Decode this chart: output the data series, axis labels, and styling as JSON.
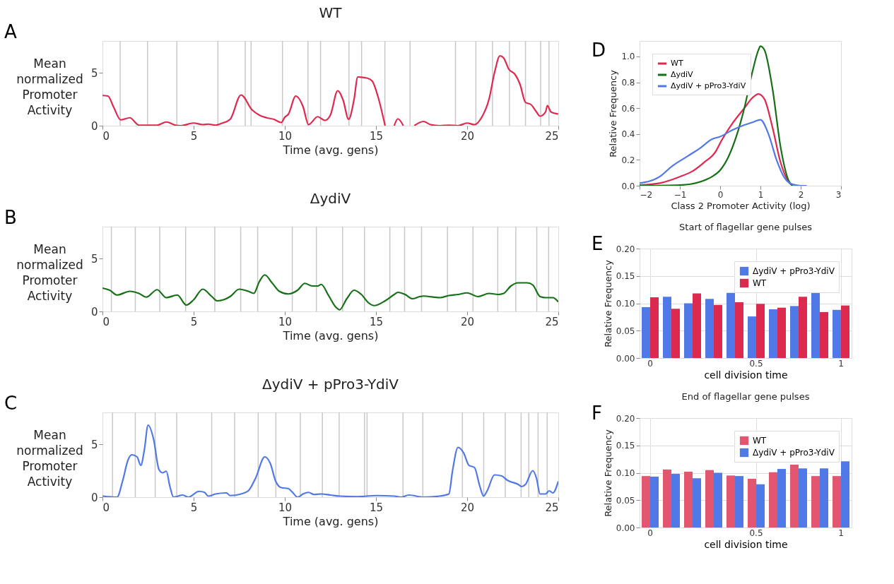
{
  "chart_data": [
    {
      "type": "line",
      "title": "WT",
      "xlabel": "Time (avg. gens)",
      "ylabel": "Mean normalized Promoter Activity",
      "annotations": [
        "A"
      ],
      "xlim": [
        0,
        25
      ],
      "xticks": [
        0,
        5,
        10,
        15,
        20,
        25
      ],
      "ylim": [
        0,
        8
      ],
      "yticks": [
        0,
        5
      ],
      "grid": false,
      "series": [
        {
          "color": "#e0284f",
          "x": [
            0,
            0.3,
            0.6,
            1.0,
            1.5,
            2.0,
            2.5,
            3.0,
            3.5,
            4.0,
            4.3,
            5.0,
            5.5,
            5.8,
            6.2,
            6.5,
            7.0,
            7.6,
            8.2,
            8.6,
            9.0,
            9.4,
            9.8,
            10.0,
            10.2,
            10.6,
            11.0,
            11.3,
            11.8,
            12.2,
            12.5,
            12.9,
            13.2,
            13.5,
            13.8,
            14.0,
            14.5,
            14.8,
            15.1,
            15.5,
            15.75,
            16.0,
            16.2,
            16.5,
            16.8,
            17.1,
            17.6,
            18.0,
            18.5,
            19.0,
            19.5,
            20.0,
            20.4,
            20.8,
            21.2,
            21.5,
            21.8,
            22.0,
            22.3,
            22.6,
            22.9,
            23.2,
            23.5,
            23.8,
            24.0,
            24.3,
            24.4,
            24.6,
            25.0
          ],
          "values": [
            2.85,
            2.8,
            1.8,
            0.55,
            0.75,
            0.05,
            0.05,
            0.05,
            0.35,
            0.05,
            0.0,
            0.25,
            0.1,
            0.15,
            0.05,
            0.2,
            0.6,
            2.9,
            1.5,
            1.0,
            0.75,
            0.6,
            0.3,
            0.8,
            1.1,
            2.8,
            1.8,
            0.1,
            0.85,
            0.5,
            1.0,
            3.3,
            2.4,
            0.6,
            2.5,
            4.6,
            4.5,
            4.2,
            2.8,
            0.0,
            null,
            0.0,
            0.65,
            0.0,
            null,
            0.0,
            0.4,
            0.1,
            0.0,
            0.05,
            0.0,
            0.25,
            0.1,
            0.8,
            2.5,
            5.0,
            6.6,
            6.4,
            5.3,
            4.9,
            3.9,
            2.2,
            2.0,
            1.3,
            0.9,
            1.3,
            1.9,
            1.3,
            1.1
          ]
        }
      ],
      "ref_lines": [
        {
          "axis": "x",
          "value": 0.97,
          "color": "#c8c8c8"
        },
        {
          "axis": "x",
          "value": 2.47,
          "color": "#c8c8c8"
        },
        {
          "axis": "x",
          "value": 4.08,
          "color": "#c8c8c8"
        },
        {
          "axis": "x",
          "value": 6.33,
          "color": "#c8c8c8"
        },
        {
          "axis": "x",
          "value": 7.83,
          "color": "#c8c8c8"
        },
        {
          "axis": "x",
          "value": 8.15,
          "color": "#c8c8c8"
        },
        {
          "axis": "x",
          "value": 9.87,
          "color": "#c8c8c8"
        },
        {
          "axis": "x",
          "value": 11.27,
          "color": "#c8c8c8"
        },
        {
          "axis": "x",
          "value": 11.96,
          "color": "#c8c8c8"
        },
        {
          "axis": "x",
          "value": 13.52,
          "color": "#c8c8c8"
        },
        {
          "axis": "x",
          "value": 14.21,
          "color": "#c8c8c8"
        },
        {
          "axis": "x",
          "value": 15.49,
          "color": "#c8c8c8"
        },
        {
          "axis": "x",
          "value": 16.87,
          "color": "#c8c8c8"
        },
        {
          "axis": "x",
          "value": 19.36,
          "color": "#c8c8c8"
        },
        {
          "axis": "x",
          "value": 20.48,
          "color": "#c8c8c8"
        },
        {
          "axis": "x",
          "value": 21.39,
          "color": "#c8c8c8"
        },
        {
          "axis": "x",
          "value": 22.32,
          "color": "#c8c8c8"
        },
        {
          "axis": "x",
          "value": 23.2,
          "color": "#c8c8c8"
        },
        {
          "axis": "x",
          "value": 24.03,
          "color": "#c8c8c8"
        },
        {
          "axis": "x",
          "value": 24.49,
          "color": "#c8c8c8"
        }
      ]
    },
    {
      "type": "line",
      "title": "ΔydiV",
      "xlabel": "Time (avg. gens)",
      "ylabel": "Mean normalized Promoter Activity",
      "annotations": [
        "B"
      ],
      "xlim": [
        0,
        25
      ],
      "xticks": [
        0,
        5,
        10,
        15,
        20,
        25
      ],
      "ylim": [
        0,
        8
      ],
      "yticks": [
        0,
        5
      ],
      "grid": false,
      "series": [
        {
          "color": "#167016",
          "x": [
            0,
            0.4,
            0.8,
            1.5,
            2.0,
            2.4,
            3.0,
            3.5,
            4.1,
            4.6,
            5.0,
            5.5,
            6.0,
            6.3,
            7.0,
            7.5,
            8.0,
            8.3,
            8.6,
            8.9,
            9.3,
            9.7,
            10.2,
            10.7,
            11.1,
            11.5,
            11.8,
            12.0,
            12.4,
            12.8,
            13.0,
            13.4,
            13.8,
            14.2,
            14.6,
            14.9,
            15.5,
            16.0,
            16.2,
            16.6,
            17.0,
            17.4,
            17.6,
            18.5,
            19.0,
            19.5,
            20.0,
            20.6,
            21.2,
            21.7,
            22.0,
            22.4,
            22.8,
            23.3,
            23.6,
            24.0,
            24.3,
            24.7,
            25.0
          ],
          "values": [
            2.2,
            2.0,
            1.55,
            1.9,
            1.7,
            1.35,
            2.05,
            1.3,
            1.55,
            0.6,
            1.1,
            2.1,
            1.4,
            1.0,
            1.4,
            2.1,
            1.9,
            1.7,
            2.8,
            3.45,
            2.7,
            1.9,
            1.65,
            2.0,
            2.65,
            2.4,
            2.4,
            2.55,
            1.5,
            0.4,
            0.15,
            1.2,
            2.0,
            1.6,
            0.8,
            0.55,
            1.0,
            1.6,
            1.8,
            1.6,
            1.2,
            1.4,
            1.45,
            1.3,
            1.5,
            1.6,
            1.75,
            1.4,
            1.7,
            1.6,
            1.7,
            2.4,
            2.7,
            2.7,
            2.5,
            1.4,
            1.3,
            1.3,
            0.9
          ]
        }
      ],
      "ref_lines": [
        {
          "axis": "x",
          "value": 0.49,
          "color": "#c8c8c8"
        },
        {
          "axis": "x",
          "value": 1.8,
          "color": "#c8c8c8"
        },
        {
          "axis": "x",
          "value": 3.14,
          "color": "#c8c8c8"
        },
        {
          "axis": "x",
          "value": 4.56,
          "color": "#c8c8c8"
        },
        {
          "axis": "x",
          "value": 6.16,
          "color": "#c8c8c8"
        },
        {
          "axis": "x",
          "value": 7.58,
          "color": "#c8c8c8"
        },
        {
          "axis": "x",
          "value": 8.51,
          "color": "#c8c8c8"
        },
        {
          "axis": "x",
          "value": 10.41,
          "color": "#c8c8c8"
        },
        {
          "axis": "x",
          "value": 11.73,
          "color": "#c8c8c8"
        },
        {
          "axis": "x",
          "value": 13.17,
          "color": "#c8c8c8"
        },
        {
          "axis": "x",
          "value": 14.37,
          "color": "#c8c8c8"
        },
        {
          "axis": "x",
          "value": 15.76,
          "color": "#c8c8c8"
        },
        {
          "axis": "x",
          "value": 16.57,
          "color": "#c8c8c8"
        },
        {
          "axis": "x",
          "value": 17.5,
          "color": "#c8c8c8"
        },
        {
          "axis": "x",
          "value": 18.92,
          "color": "#c8c8c8"
        },
        {
          "axis": "x",
          "value": 20.32,
          "color": "#c8c8c8"
        },
        {
          "axis": "x",
          "value": 21.68,
          "color": "#c8c8c8"
        },
        {
          "axis": "x",
          "value": 22.67,
          "color": "#c8c8c8"
        },
        {
          "axis": "x",
          "value": 23.82,
          "color": "#c8c8c8"
        },
        {
          "axis": "x",
          "value": 24.47,
          "color": "#c8c8c8"
        }
      ]
    },
    {
      "type": "line",
      "title": "ΔydiV + pPro3-YdiV",
      "xlabel": "Time (avg. gens)",
      "ylabel": "Mean normalized Promoter Activity",
      "annotations": [
        "C"
      ],
      "xlim": [
        0,
        25
      ],
      "xticks": [
        0,
        5,
        10,
        15,
        20,
        25
      ],
      "ylim": [
        0,
        8
      ],
      "yticks": [
        0,
        5
      ],
      "grid": false,
      "series": [
        {
          "color": "#5078e6",
          "x": [
            0,
            0.8,
            1.1,
            1.4,
            1.6,
            1.9,
            2.1,
            2.3,
            2.5,
            2.8,
            3.1,
            3.3,
            3.5,
            3.7,
            3.9,
            4.4,
            4.7,
            5.3,
            5.6,
            5.8,
            6.2,
            6.8,
            7.0,
            7.6,
            8.0,
            8.4,
            8.9,
            9.2,
            9.5,
            9.8,
            10.2,
            10.4,
            10.7,
            11.0,
            11.3,
            11.6,
            12.0,
            12.5,
            13.0,
            14.0,
            15.0,
            16.0,
            16.4,
            16.8,
            17.6,
            18.5,
            19.0,
            19.2,
            19.5,
            19.8,
            20.1,
            20.4,
            20.7,
            20.9,
            21.1,
            21.5,
            21.9,
            22.2,
            22.8,
            23.0,
            23.2,
            23.6,
            23.8,
            24.0,
            24.3,
            24.5,
            24.7,
            25.0
          ],
          "values": [
            0.1,
            0.0,
            1.5,
            3.5,
            4.0,
            3.8,
            3.0,
            4.5,
            6.8,
            5.5,
            2.6,
            2.3,
            2.45,
            1.0,
            0.0,
            0.2,
            0.0,
            0.55,
            0.45,
            0.1,
            0.3,
            0.4,
            0.15,
            0.3,
            0.6,
            1.8,
            3.8,
            3.2,
            1.5,
            0.9,
            0.8,
            0.5,
            0.0,
            0.3,
            0.45,
            0.25,
            0.3,
            0.2,
            0.1,
            0.05,
            0.15,
            0.1,
            0.0,
            0.2,
            0.0,
            0.1,
            0.3,
            2.5,
            4.7,
            4.2,
            3.0,
            2.8,
            1.0,
            0.1,
            0.6,
            2.1,
            2.0,
            1.6,
            1.2,
            1.0,
            1.2,
            2.5,
            1.8,
            0.3,
            0.3,
            0.6,
            0.4,
            1.5
          ]
        }
      ],
      "ref_lines": [
        {
          "axis": "x",
          "value": 0.55,
          "color": "#c8c8c8"
        },
        {
          "axis": "x",
          "value": 1.8,
          "color": "#c8c8c8"
        },
        {
          "axis": "x",
          "value": 2.89,
          "color": "#c8c8c8"
        },
        {
          "axis": "x",
          "value": 4.07,
          "color": "#c8c8c8"
        },
        {
          "axis": "x",
          "value": 5.99,
          "color": "#c8c8c8"
        },
        {
          "axis": "x",
          "value": 7.25,
          "color": "#c8c8c8"
        },
        {
          "axis": "x",
          "value": 8.54,
          "color": "#c8c8c8"
        },
        {
          "axis": "x",
          "value": 9.51,
          "color": "#c8c8c8"
        },
        {
          "axis": "x",
          "value": 10.85,
          "color": "#c8c8c8"
        },
        {
          "axis": "x",
          "value": 12.06,
          "color": "#c8c8c8"
        },
        {
          "axis": "x",
          "value": 12.98,
          "color": "#c8c8c8"
        },
        {
          "axis": "x",
          "value": 14.37,
          "color": "#c8c8c8"
        },
        {
          "axis": "x",
          "value": 14.51,
          "color": "#c8c8c8"
        },
        {
          "axis": "x",
          "value": 16.48,
          "color": "#c8c8c8"
        },
        {
          "axis": "x",
          "value": 17.57,
          "color": "#c8c8c8"
        },
        {
          "axis": "x",
          "value": 19.74,
          "color": "#c8c8c8"
        },
        {
          "axis": "x",
          "value": 20.91,
          "color": "#c8c8c8"
        },
        {
          "axis": "x",
          "value": 22.09,
          "color": "#c8c8c8"
        },
        {
          "axis": "x",
          "value": 22.96,
          "color": "#c8c8c8"
        },
        {
          "axis": "x",
          "value": 23.38,
          "color": "#c8c8c8"
        },
        {
          "axis": "x",
          "value": 23.89,
          "color": "#c8c8c8"
        },
        {
          "axis": "x",
          "value": 24.39,
          "color": "#c8c8c8"
        }
      ]
    },
    {
      "type": "line",
      "xlabel": "Class 2 Promoter Activity (log)",
      "ylabel": "Relative Frequency",
      "annotations": [
        "D"
      ],
      "xlim": [
        -2,
        3
      ],
      "xticks": [
        -2,
        -1,
        0,
        1,
        2,
        3
      ],
      "ylim": [
        0,
        1.12
      ],
      "yticks": [
        {
          "value": 0,
          "label": "0.0"
        },
        {
          "value": 0.2,
          "label": "0.2"
        },
        {
          "value": 0.4,
          "label": "0.4"
        },
        {
          "value": 0.6,
          "label": "0.6"
        },
        {
          "value": 0.8,
          "label": "0.8"
        },
        {
          "value": 1.0,
          "label": "1.0"
        }
      ],
      "grid": false,
      "legend": "top left",
      "series": [
        {
          "name": "WT",
          "color": "#e0284f",
          "x": [
            -2,
            -1.5,
            -1.0,
            -0.7,
            -0.4,
            -0.1,
            0.0,
            0.3,
            0.6,
            0.8,
            0.95,
            1.1,
            1.3,
            1.5,
            1.7,
            1.8
          ],
          "values": [
            0.005,
            0.02,
            0.07,
            0.11,
            0.18,
            0.27,
            0.33,
            0.48,
            0.6,
            0.68,
            0.71,
            0.67,
            0.45,
            0.18,
            0.03,
            0.0
          ]
        },
        {
          "name": "ΔydiV",
          "color": "#167016",
          "x": [
            -2,
            -1,
            -0.5,
            -0.2,
            0.0,
            0.2,
            0.4,
            0.6,
            0.8,
            0.95,
            1.0,
            1.1,
            1.3,
            1.5,
            1.7,
            1.8
          ],
          "values": [
            0.0,
            0.005,
            0.03,
            0.07,
            0.12,
            0.22,
            0.38,
            0.6,
            0.88,
            1.05,
            1.08,
            1.05,
            0.75,
            0.3,
            0.04,
            0.0
          ]
        },
        {
          "name": "ΔydiV + pPro3-YdiV",
          "color": "#5078e6",
          "x": [
            -2,
            -1.5,
            -1.2,
            -0.8,
            -0.5,
            -0.2,
            0.0,
            0.3,
            0.6,
            0.8,
            1.0,
            1.2,
            1.4,
            1.6,
            1.8,
            2.0,
            2.15
          ],
          "values": [
            0.02,
            0.07,
            0.15,
            0.23,
            0.29,
            0.36,
            0.38,
            0.43,
            0.47,
            0.49,
            0.51,
            0.4,
            0.2,
            0.06,
            0.01,
            0.0,
            0.0
          ]
        }
      ]
    },
    {
      "type": "bar",
      "title": "Start of flagellar gene pulses",
      "xlabel": "cell division time",
      "ylabel": "Relative Frequency",
      "annotations": [
        "E"
      ],
      "categories": [
        "0",
        null,
        null,
        null,
        null,
        "0.5",
        null,
        null,
        null,
        "1"
      ],
      "ylim": [
        0,
        0.2
      ],
      "yticks": [
        {
          "value": 0,
          "label": "0.00"
        },
        {
          "value": 0.05,
          "label": "0.05"
        },
        {
          "value": 0.1,
          "label": "0.10"
        },
        {
          "value": 0.15,
          "label": "0.15"
        },
        {
          "value": 0.2,
          "label": "0.20"
        }
      ],
      "grid": true,
      "legend": "top right",
      "series": [
        {
          "name": "ΔydiV + pPro3-YdiV",
          "color": "#5078e6",
          "values": [
            0.093,
            0.112,
            0.1,
            0.108,
            0.119,
            0.076,
            0.089,
            0.095,
            0.119,
            0.088
          ]
        },
        {
          "name": "WT",
          "color": "#dc2a4e",
          "values": [
            0.111,
            0.09,
            0.118,
            0.097,
            0.102,
            0.099,
            0.092,
            0.112,
            0.084,
            0.096
          ]
        }
      ]
    },
    {
      "type": "bar",
      "title": "End of flagellar gene pulses",
      "xlabel": "cell division time",
      "ylabel": "Relative Frequency",
      "annotations": [
        "F"
      ],
      "categories": [
        "0",
        null,
        null,
        null,
        null,
        "0.5",
        null,
        null,
        null,
        "1"
      ],
      "ylim": [
        0,
        0.2
      ],
      "yticks": [
        {
          "value": 0,
          "label": "0.00"
        },
        {
          "value": 0.05,
          "label": "0.05"
        },
        {
          "value": 0.1,
          "label": "0.10"
        },
        {
          "value": 0.15,
          "label": "0.15"
        },
        {
          "value": 0.2,
          "label": "0.20"
        }
      ],
      "grid": true,
      "legend": "top right",
      "series": [
        {
          "name": "WT",
          "color": "#e2566f",
          "values": [
            0.094,
            0.106,
            0.102,
            0.105,
            0.095,
            0.089,
            0.101,
            0.115,
            0.094,
            0.094
          ]
        },
        {
          "name": "ΔydiV + pPro3-YdiV",
          "color": "#5078e6",
          "values": [
            0.093,
            0.098,
            0.09,
            0.1,
            0.094,
            0.079,
            0.107,
            0.108,
            0.108,
            0.121
          ]
        }
      ]
    }
  ]
}
